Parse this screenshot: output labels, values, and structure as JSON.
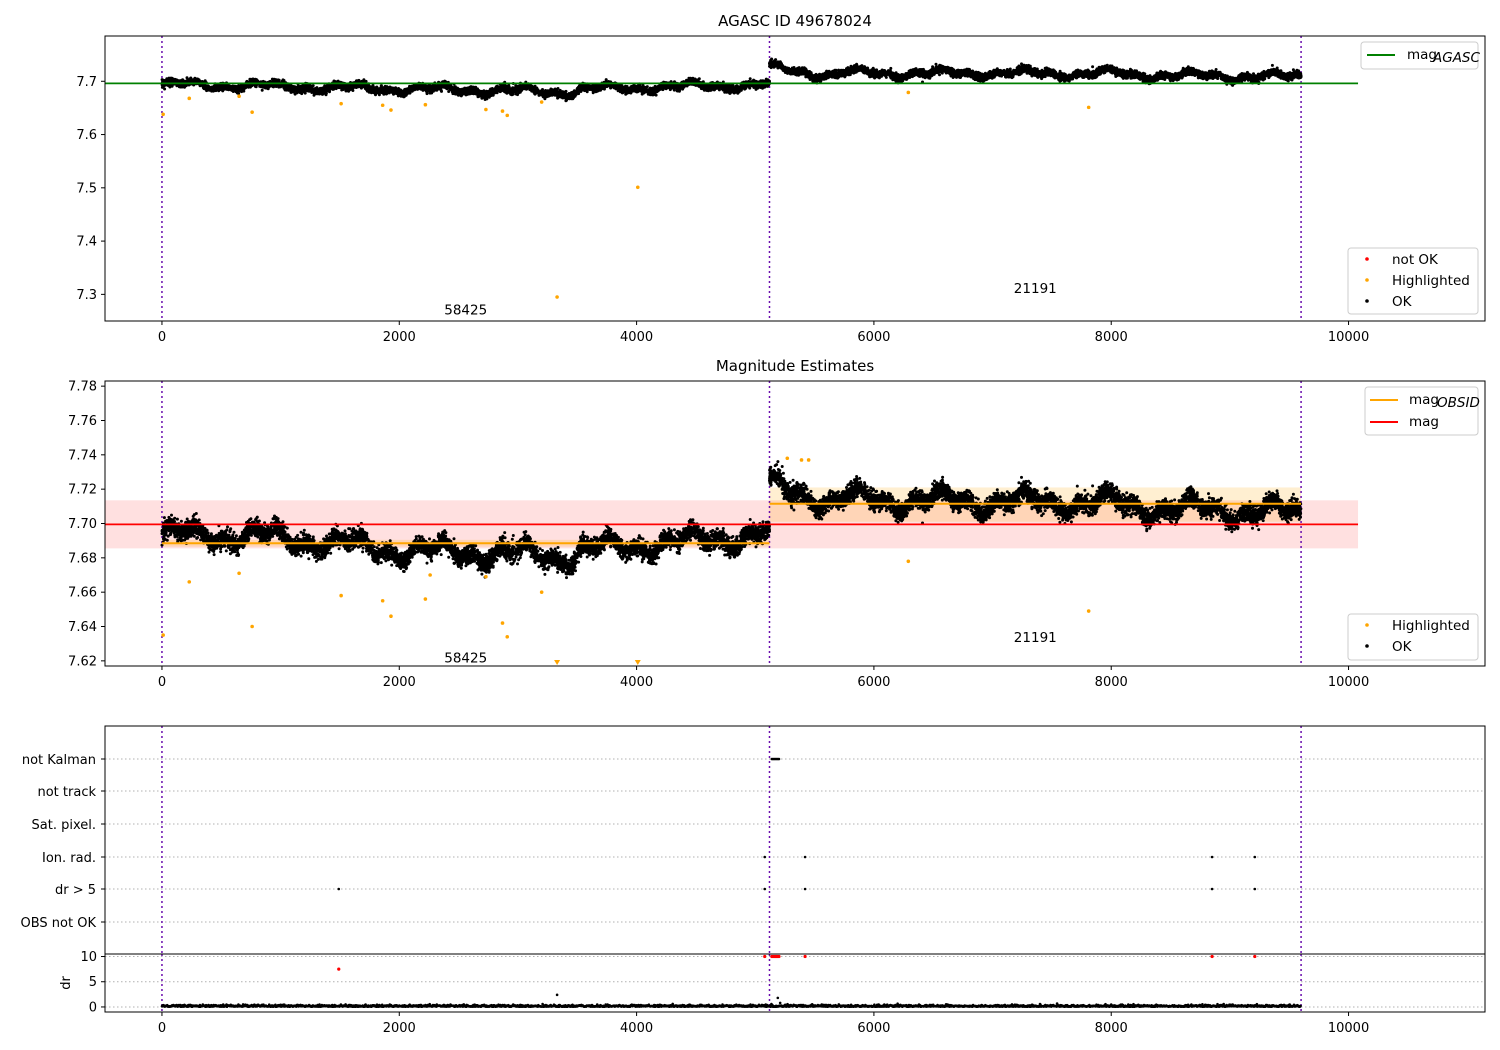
{
  "chart_data": [
    {
      "type": "scatter",
      "title": "AGASC ID 49678024",
      "xlim": [
        -480,
        11150
      ],
      "ylim": [
        7.25,
        7.785
      ],
      "xticks": [
        0,
        2000,
        4000,
        6000,
        8000,
        10000
      ],
      "yticks": [
        7.3,
        7.4,
        7.5,
        7.6,
        7.7
      ],
      "obs_boundaries": [
        0,
        5120,
        9600
      ],
      "obs_labels": [
        {
          "text": "58425",
          "x": 2560,
          "y": 7.272
        },
        {
          "text": "21191",
          "x": 7360,
          "y": 7.312
        }
      ],
      "lines": [
        {
          "name": "mag",
          "subscript": "AGASC",
          "color": "#008000",
          "x": [
            -480,
            10080
          ],
          "y": [
            7.696,
            7.696
          ]
        }
      ],
      "segments": [
        {
          "x_range": [
            0,
            5120
          ],
          "bands": [
            [
              0,
              2000,
              7.694,
              7.686
            ],
            [
              2000,
              3500,
              7.686,
              7.68
            ],
            [
              3500,
              5120,
              7.685,
              7.694
            ]
          ]
        },
        {
          "x_range": [
            5120,
            9600
          ],
          "bands": [
            [
              5120,
              5700,
              7.725,
              7.71
            ],
            [
              5700,
              8100,
              7.715,
              7.715
            ],
            [
              8100,
              9600,
              7.712,
              7.708
            ]
          ]
        }
      ],
      "highlighted": {
        "color": "#ffa500",
        "x": [
          10,
          230,
          650,
          760,
          1510,
          1860,
          1930,
          2220,
          2730,
          2870,
          2910,
          3200,
          3330,
          4010,
          6290,
          7810
        ],
        "y": [
          7.638,
          7.668,
          7.672,
          7.642,
          7.658,
          7.655,
          7.646,
          7.656,
          7.647,
          7.644,
          7.636,
          7.661,
          7.295,
          7.501,
          7.679,
          7.651
        ]
      },
      "legends": [
        {
          "position": "top-right",
          "entries": [
            {
              "label": "mag",
              "subscript": "AGASC",
              "color": "#008000",
              "kind": "line"
            }
          ]
        },
        {
          "position": "bottom-right",
          "entries": [
            {
              "label": "not OK",
              "color": "#ff0000",
              "kind": "marker"
            },
            {
              "label": "Highlighted",
              "color": "#ffa500",
              "kind": "marker"
            },
            {
              "label": "OK",
              "color": "#000000",
              "kind": "marker"
            }
          ]
        }
      ]
    },
    {
      "type": "scatter",
      "title": "Magnitude Estimates",
      "xlim": [
        -480,
        11150
      ],
      "ylim": [
        7.617,
        7.783
      ],
      "xticks": [
        0,
        2000,
        4000,
        6000,
        8000,
        10000
      ],
      "yticks": [
        7.62,
        7.64,
        7.66,
        7.68,
        7.7,
        7.72,
        7.74,
        7.76,
        7.78
      ],
      "obs_boundaries": [
        0,
        5120,
        9600
      ],
      "obs_labels": [
        {
          "text": "58425",
          "x": 2560,
          "y": 7.622
        },
        {
          "text": "21191",
          "x": 7360,
          "y": 7.634
        }
      ],
      "mag": {
        "color": "#ff0000",
        "value": 7.6995,
        "x_range": [
          -480,
          10080
        ],
        "band": [
          7.6855,
          7.7135
        ]
      },
      "mag_obsid": [
        {
          "x_range": [
            0,
            5120
          ],
          "value": 7.6885,
          "band": [
            7.6865,
            7.6905
          ]
        },
        {
          "x_range": [
            5120,
            9600
          ],
          "value": 7.7115,
          "band": [
            7.701,
            7.721
          ]
        }
      ],
      "segments": [
        {
          "x_range": [
            0,
            5120
          ],
          "bands": [
            [
              0,
              1000,
              7.694,
              7.692
            ],
            [
              1000,
              2000,
              7.692,
              7.684
            ],
            [
              2000,
              3500,
              7.684,
              7.681
            ],
            [
              3500,
              5120,
              7.684,
              7.694
            ]
          ]
        },
        {
          "x_range": [
            5120,
            9600
          ],
          "bands": [
            [
              5120,
              5700,
              7.722,
              7.712
            ],
            [
              5700,
              8100,
              7.714,
              7.712
            ],
            [
              8100,
              9600,
              7.71,
              7.706
            ]
          ]
        }
      ],
      "highlighted": {
        "color": "#ffa500",
        "x": [
          10,
          230,
          650,
          760,
          1510,
          1860,
          1930,
          2220,
          2260,
          2730,
          2870,
          2910,
          3200,
          5270,
          5390,
          5450,
          6290,
          7810
        ],
        "y": [
          7.635,
          7.666,
          7.671,
          7.64,
          7.658,
          7.655,
          7.646,
          7.656,
          7.67,
          7.669,
          7.642,
          7.634,
          7.66,
          7.738,
          7.737,
          7.737,
          7.678,
          7.649
        ]
      },
      "clipped": {
        "color": "#ffa500",
        "x": [
          3330,
          4010
        ]
      },
      "legends": [
        {
          "position": "top-right",
          "entries": [
            {
              "label": "mag",
              "subscript": "OBSID",
              "color": "#ffa500",
              "kind": "line"
            },
            {
              "label": "mag",
              "subscript": "",
              "color": "#ff0000",
              "kind": "line"
            }
          ]
        },
        {
          "position": "bottom-right",
          "entries": [
            {
              "label": "Highlighted",
              "color": "#ffa500",
              "kind": "marker"
            },
            {
              "label": "OK",
              "color": "#000000",
              "kind": "marker"
            }
          ]
        }
      ]
    },
    {
      "type": "scatter",
      "xlim": [
        -480,
        11150
      ],
      "categories": [
        "not Kalman",
        "not track",
        "Sat. pixel.",
        "Ion. rad.",
        "dr > 5",
        "OBS not OK"
      ],
      "flags": {
        "not Kalman": [
          5140,
          5150,
          5160,
          5170,
          5180,
          5190,
          5200
        ],
        "not track": [],
        "Sat. pixel.": [],
        "Ion. rad.": [
          5080,
          5420,
          8850,
          9210
        ],
        "dr > 5": [
          1490,
          5080,
          5420,
          8850,
          9210
        ],
        "OBS not OK": []
      },
      "obs_boundaries": [
        0,
        5120,
        9600
      ]
    },
    {
      "type": "scatter",
      "xlim": [
        -480,
        11150
      ],
      "ylim": [
        -1,
        10.5
      ],
      "ylabel": "dr",
      "yticks": [
        0,
        5,
        10
      ],
      "xticks": [
        0,
        2000,
        4000,
        6000,
        8000,
        10000
      ],
      "obs_boundaries": [
        0,
        5120,
        9600
      ],
      "flagged": {
        "color": "#ff0000",
        "x": [
          1490,
          5080,
          5140,
          5150,
          5160,
          5170,
          5180,
          5190,
          5200,
          5420,
          8850,
          9210
        ],
        "y": [
          7.5,
          10,
          10,
          10,
          10,
          10,
          10,
          10,
          10,
          10,
          10,
          10
        ]
      },
      "extra_ok": {
        "x": [
          3330,
          5190,
          5210
        ],
        "y": [
          2.4,
          1.8,
          0.8
        ]
      }
    }
  ]
}
